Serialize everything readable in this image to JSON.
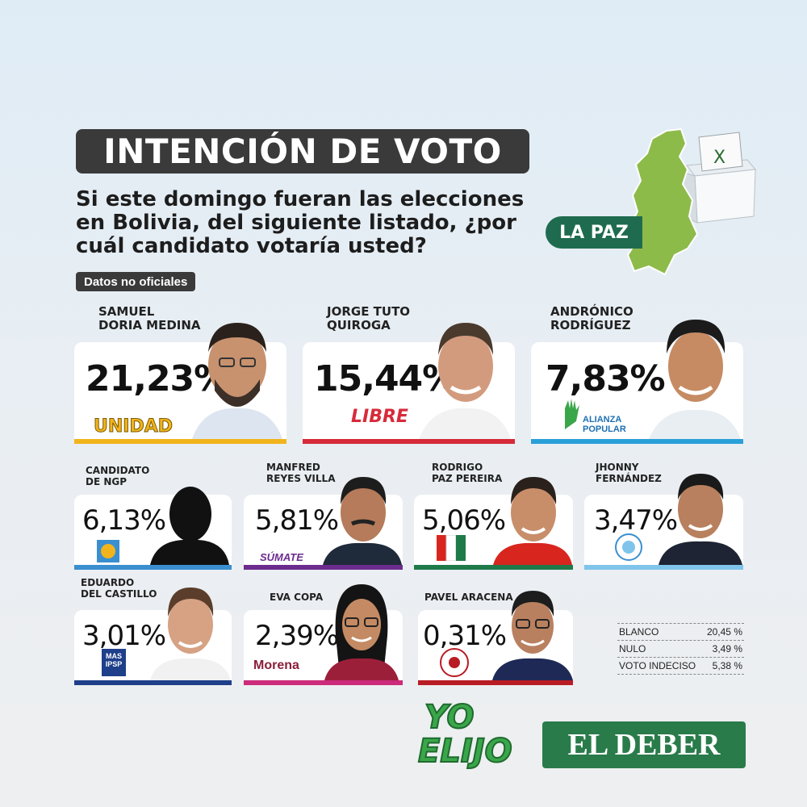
{
  "header": {
    "title": "INTENCIÓN DE VOTO",
    "question": "Si este domingo fueran las elecciones en Bolivia, del siguiente listado, ¿por cuál candidato votaría usted?",
    "disclaimer": "Datos no oficiales",
    "region": "LA PAZ"
  },
  "candidates": [
    {
      "name1": "SAMUEL",
      "name2": "DORIA MEDINA",
      "percent": "21,23%",
      "party": "UNIDAD",
      "color": "#f2b41c"
    },
    {
      "name1": "JORGE TUTO",
      "name2": "QUIROGA",
      "percent": "15,44%",
      "party": "LIBRE",
      "color": "#d62b3a"
    },
    {
      "name1": "ANDRÓNICO",
      "name2": "RODRÍGUEZ",
      "percent": "7,83%",
      "party": "ALIANZA POPULAR",
      "color": "#2aa0d8"
    },
    {
      "name1": "CANDIDATO",
      "name2": "DE NGP",
      "percent": "6,13%",
      "party": "NGP",
      "color": "#3a8fd0"
    },
    {
      "name1": "MANFRED",
      "name2": "REYES VILLA",
      "percent": "5,81%",
      "party": "SÚMATE",
      "color": "#6c2c8e"
    },
    {
      "name1": "RODRIGO",
      "name2": "PAZ PEREIRA",
      "percent": "5,06%",
      "party": "PDC",
      "color": "#1f7a4a"
    },
    {
      "name1": "JHONNY",
      "name2": "FERNÁNDEZ",
      "percent": "3,47%",
      "party": "LA FUERZA DEL PUEBLO",
      "color": "#7fc4ea"
    },
    {
      "name1": "EDUARDO",
      "name2": "DEL CASTILLO",
      "percent": "3,01%",
      "party": "MAS IPSP",
      "color": "#1e3f8a"
    },
    {
      "name1": "EVA COPA",
      "name2": "",
      "percent": "2,39%",
      "party": "Morena",
      "color": "#cc2a7a"
    },
    {
      "name1": "PAVEL ARACENA",
      "name2": "",
      "percent": "0,31%",
      "party": "LIBERTAD Y PROGRESO",
      "color": "#b81c24"
    }
  ],
  "others": [
    {
      "label": "BLANCO",
      "value": "20,45 %"
    },
    {
      "label": "NULO",
      "value": "3,49 %"
    },
    {
      "label": "VOTO INDECISO",
      "value": "5,38 %"
    }
  ],
  "footer": {
    "yo": "YO",
    "elijo": "ELIJO",
    "brand": "EL DEBER"
  },
  "colors": {
    "dark": "#3a3a3a",
    "green": "#1f6b4f",
    "map_green": "#8dbb4a"
  }
}
